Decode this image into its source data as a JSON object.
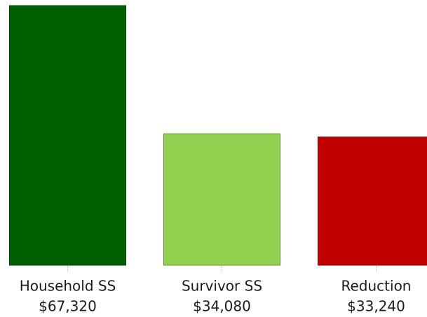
{
  "chart_data": {
    "type": "bar",
    "categories": [
      "Household SS",
      "Survivor SS",
      "Reduction"
    ],
    "values": [
      67320,
      34080,
      33240
    ],
    "value_labels": [
      "$67,320",
      "$34,080",
      "$33,240"
    ],
    "colors": [
      "#006000",
      "#92d050",
      "#c00000"
    ]
  }
}
